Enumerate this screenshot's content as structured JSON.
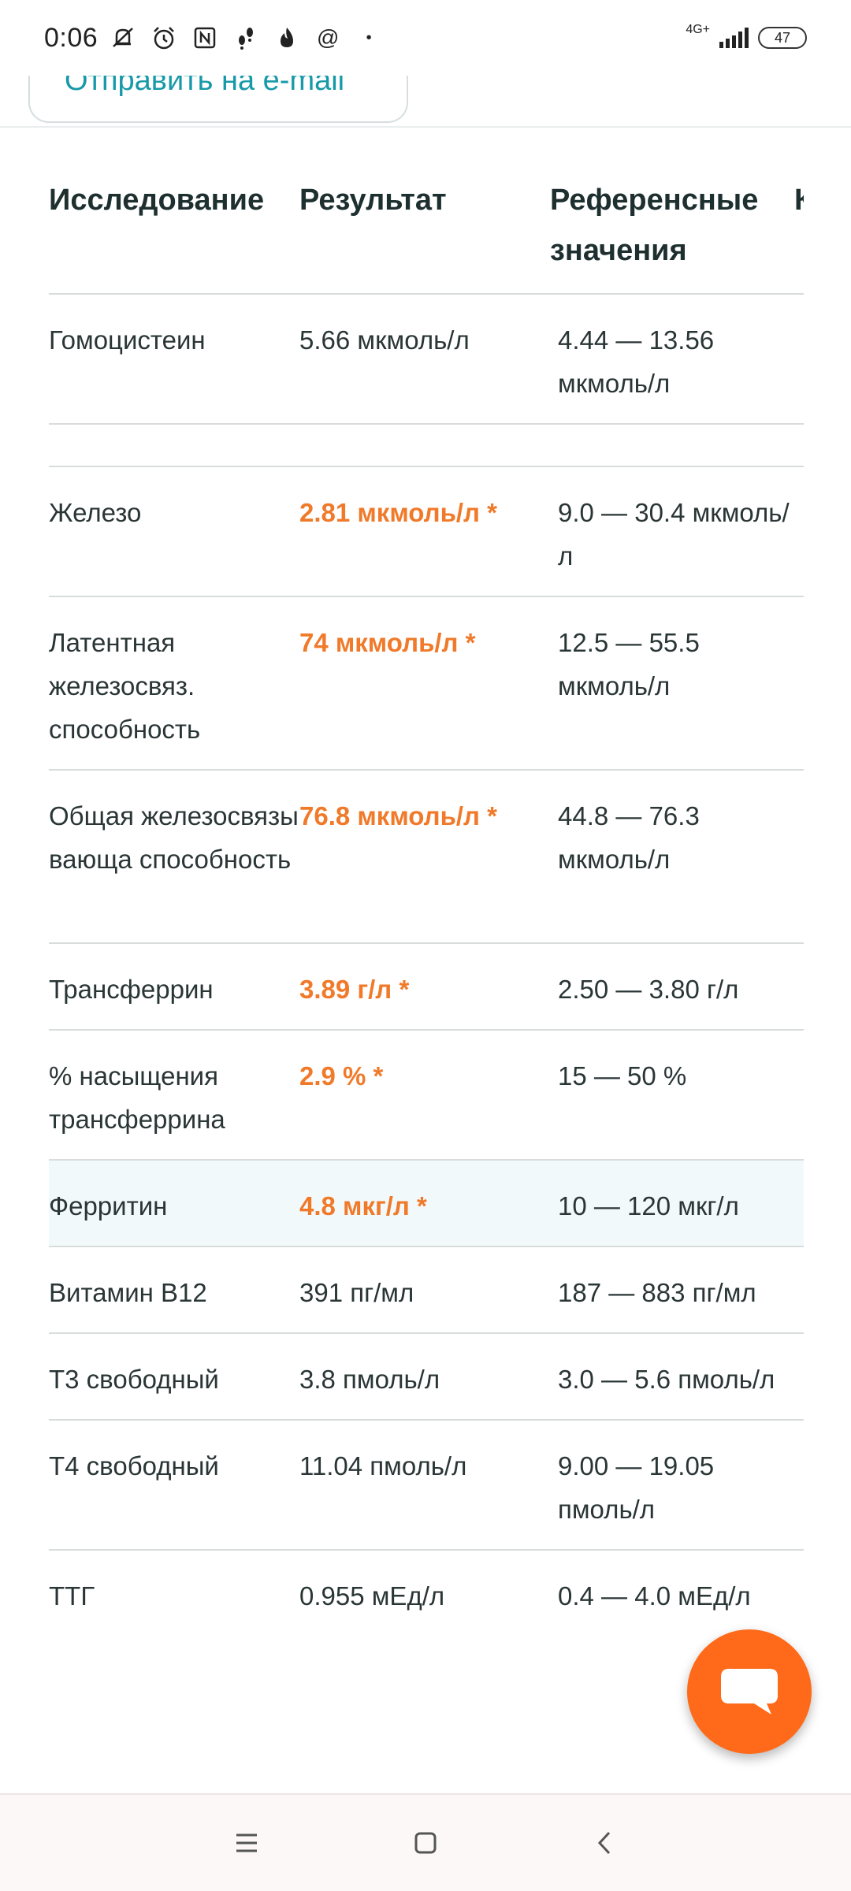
{
  "status_bar": {
    "time": "0:06",
    "network": "4G+",
    "battery": "47",
    "icons": [
      "mute-icon",
      "alarm-icon",
      "nfc-icon",
      "steps-icon",
      "flame-icon",
      "at-icon",
      "dot-icon"
    ]
  },
  "email_button": {
    "label": "Отправить на e-mail"
  },
  "table": {
    "headers": {
      "test": "Исследование",
      "result": "Результат",
      "reference": "Референсные значения",
      "next": "К"
    },
    "rows": [
      {
        "test": "Гомоцистеин",
        "result": "5.66 мкмоль/л",
        "reference": "4.44 — 13.56 мкмоль/л",
        "abnormal": false
      },
      {
        "test": "Железо",
        "result": "2.81 мкмоль/л *",
        "reference": "9.0 — 30.4 мкмоль/л",
        "abnormal": true
      },
      {
        "test": "Латентная железосвяз. способность",
        "result": "74 мкмоль/л *",
        "reference": "12.5 — 55.5 мкмоль/л",
        "abnormal": true
      },
      {
        "test": "Общая железосвязывающа способность",
        "result": "76.8 мкмоль/л *",
        "reference": "44.8 — 76.3 мкмоль/л",
        "abnormal": true
      },
      {
        "test": "Трансферрин",
        "result": "3.89 г/л *",
        "reference": "2.50 — 3.80 г/л",
        "abnormal": true
      },
      {
        "test": "% насыщения трансферрина",
        "result": "2.9 % *",
        "reference": "15 — 50 %",
        "abnormal": true
      },
      {
        "test": "Ферритин",
        "result": "4.8 мкг/л *",
        "reference": "10 — 120 мкг/л",
        "abnormal": true
      },
      {
        "test": "Витамин В12",
        "result": "391 пг/мл",
        "reference": "187 — 883 пг/мл",
        "abnormal": false
      },
      {
        "test": "Т3 свободный",
        "result": "3.8 пмоль/л",
        "reference": "3.0 — 5.6 пмоль/л",
        "abnormal": false
      },
      {
        "test": "Т4 свободный",
        "result": "11.04 пмоль/л",
        "reference": "9.00 — 19.05 пмоль/л",
        "abnormal": false
      },
      {
        "test": "ТТГ",
        "result": "0.955 мЕд/л",
        "reference": "0.4 — 4.0 мЕд/л",
        "abnormal": false
      }
    ]
  },
  "colors": {
    "accent": "#1799a8",
    "abnormal": "#f07a2a",
    "fab": "#ff6a1a",
    "highlight_row": "#f2f9fa"
  },
  "fab": {
    "icon": "chat-bubble-icon"
  },
  "nav": {
    "icons": [
      "menu-icon",
      "home-square-icon",
      "back-chevron-icon"
    ]
  }
}
